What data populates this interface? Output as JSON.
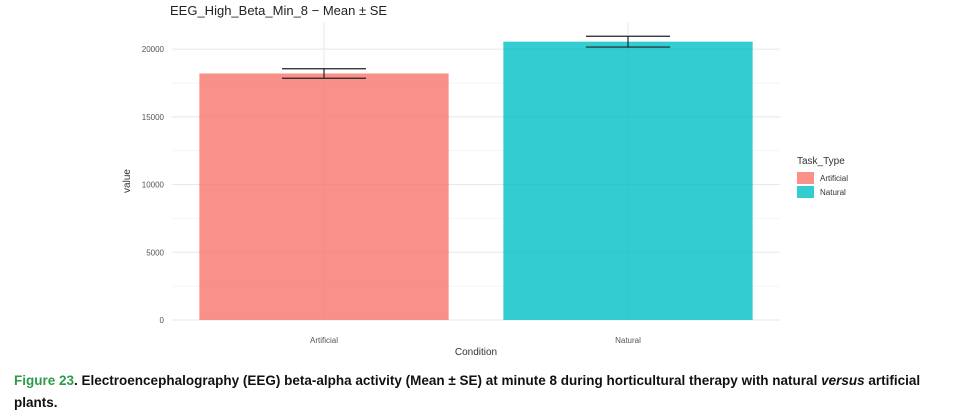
{
  "chart_data": {
    "type": "bar",
    "title": "EEG_High_Beta_Min_8 − Mean ± SE",
    "xlabel": "Condition",
    "ylabel": "value",
    "categories": [
      "Artificial",
      "Natural"
    ],
    "values": [
      18200,
      20550
    ],
    "se": [
      350,
      400
    ],
    "ylim": [
      0,
      22000
    ],
    "yticks": [
      0,
      5000,
      10000,
      15000,
      20000
    ],
    "ytick_labels": [
      "0",
      "5000",
      "10000",
      "15000",
      "20000"
    ],
    "colors": [
      "#f8766d",
      "#00bfc4"
    ],
    "grid": true,
    "legend": {
      "title": "Task_Type",
      "position": "right",
      "entries": [
        "Artificial",
        "Natural"
      ]
    }
  },
  "caption": {
    "figure_label": "Figure 23",
    "text_before": ". Electroencephalography (EEG) beta-alpha activity (Mean ± SE) at minute 8 during horticultural therapy with natural ",
    "italic": "versus",
    "text_after": " artificial plants."
  }
}
